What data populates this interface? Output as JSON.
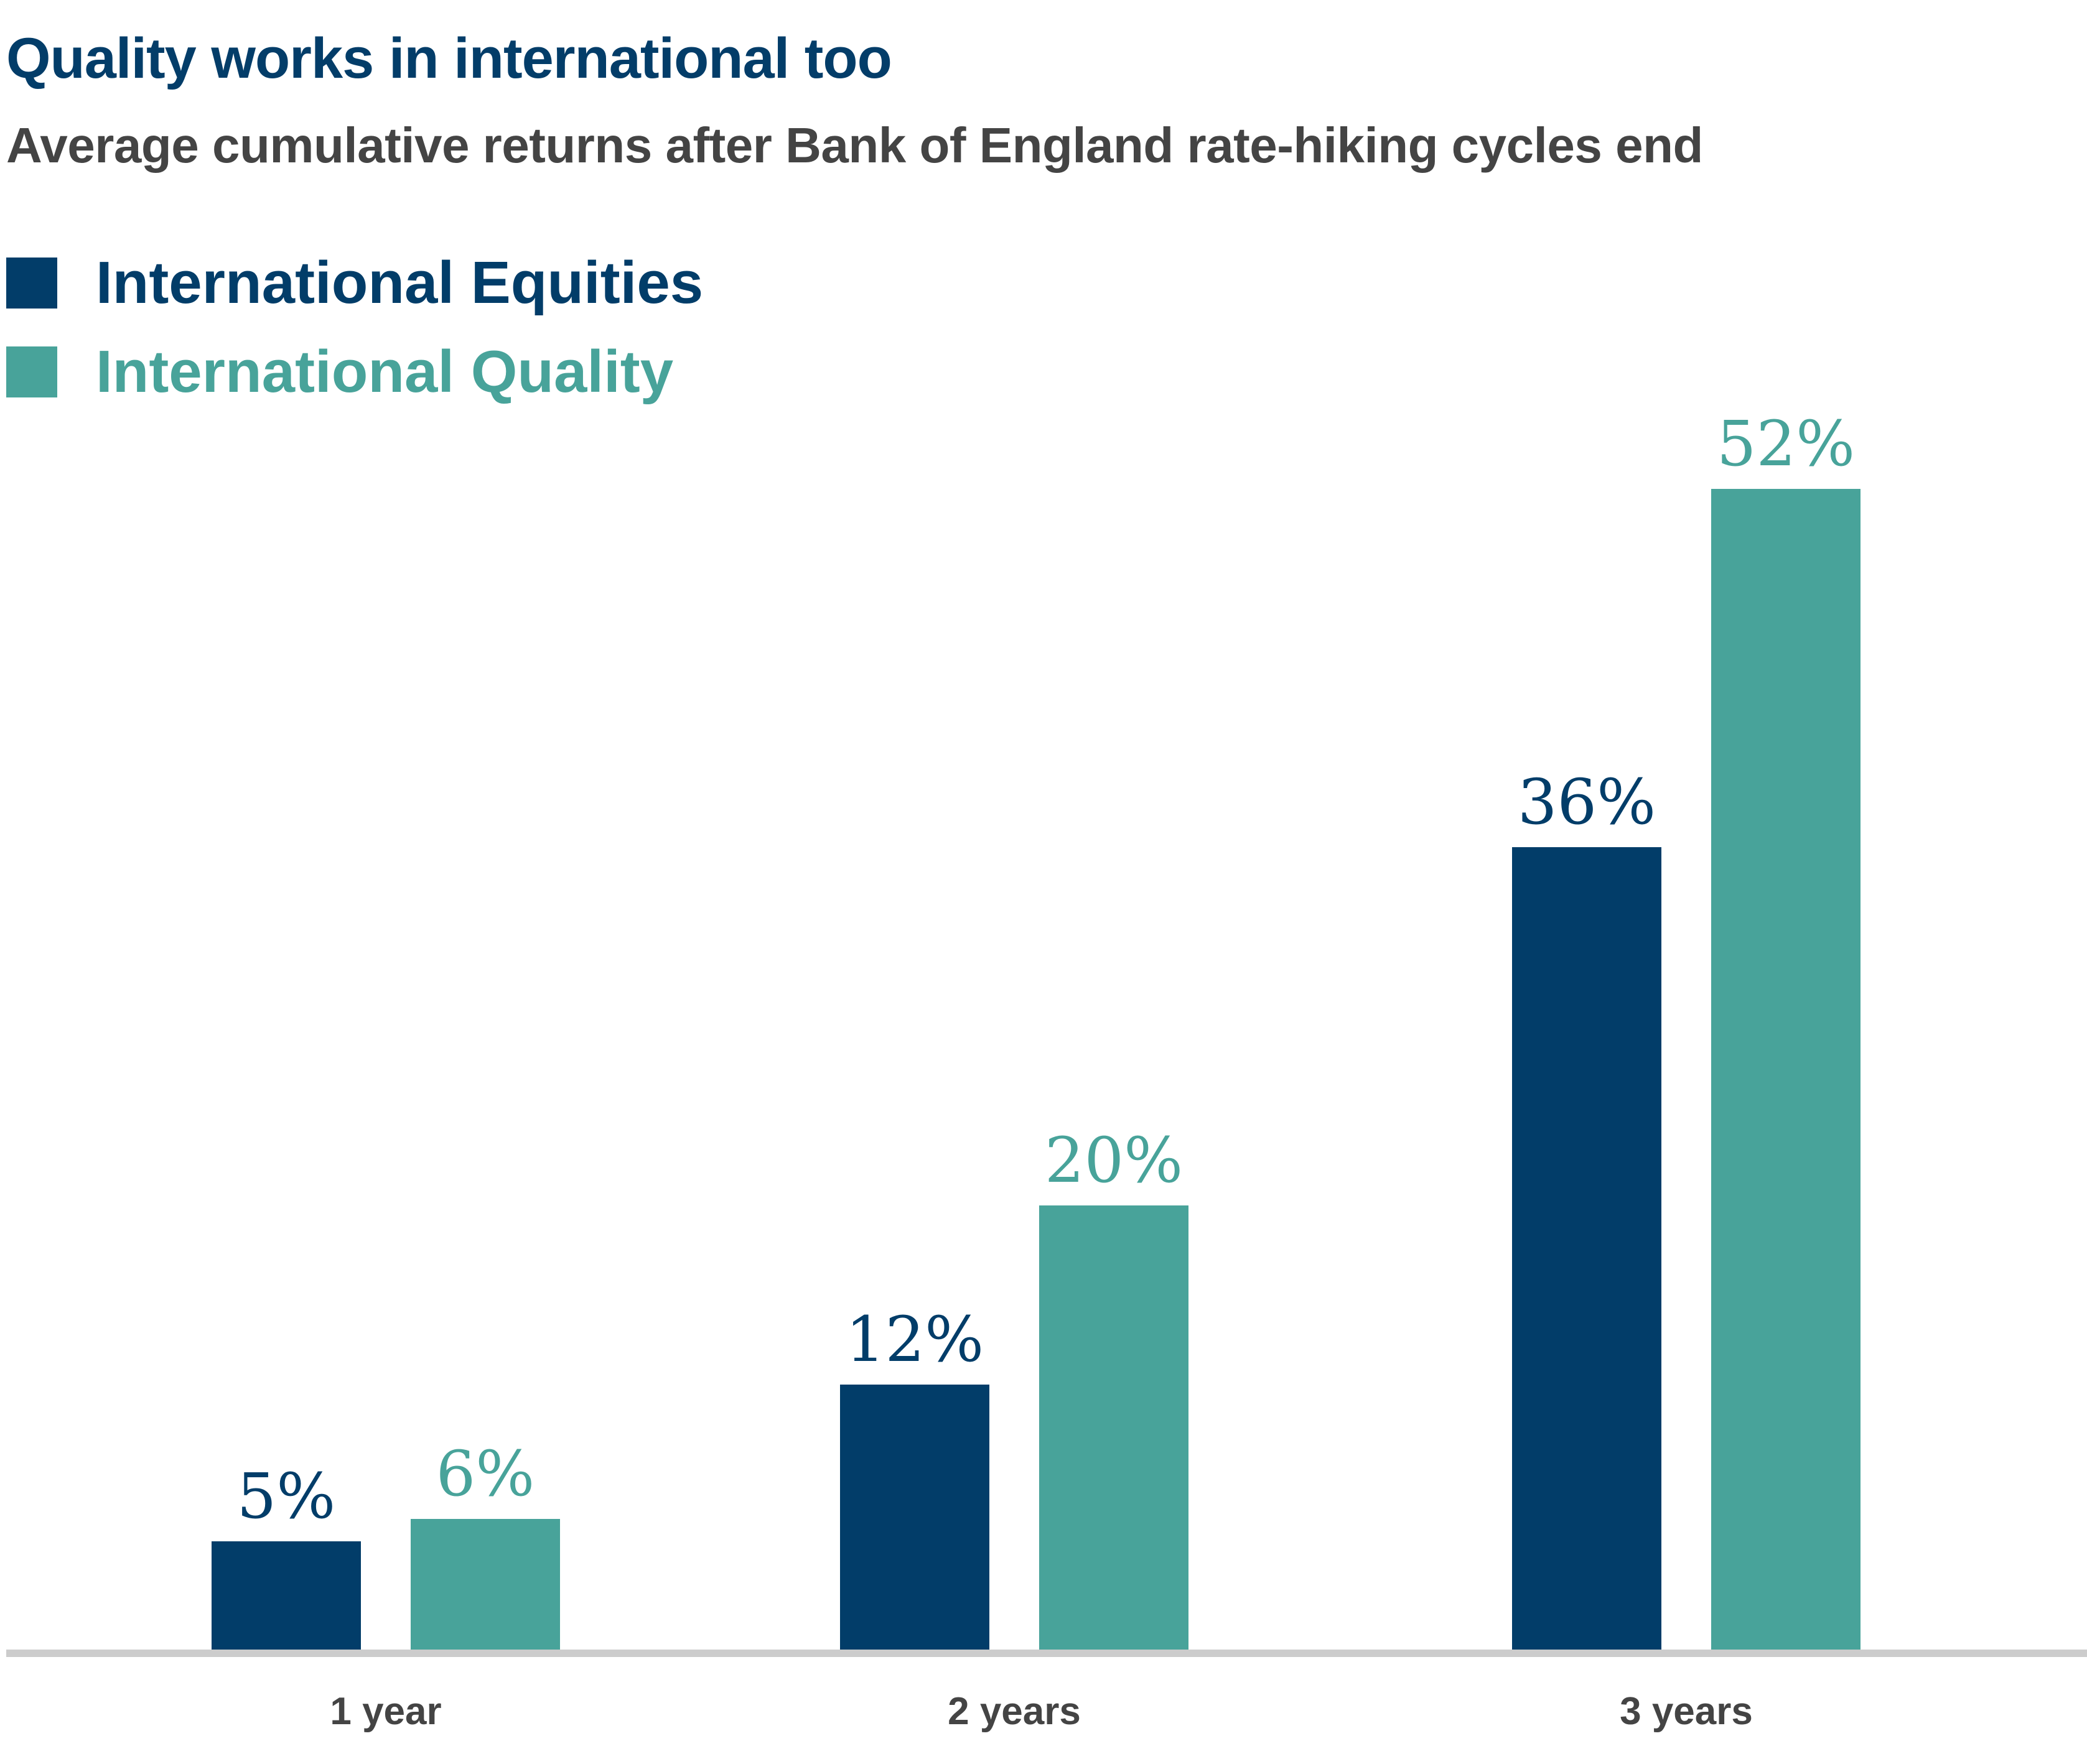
{
  "header": {
    "title": "Quality works in international too",
    "subtitle": "Average cumulative returns after Bank of England rate-hiking cycles end"
  },
  "colors": {
    "title": "#033d69",
    "subtitle": "#444444",
    "equities": "#023d69",
    "quality": "#48a39a",
    "axis": "#cccccc",
    "tick_label": "#444444"
  },
  "chart_data": {
    "type": "bar",
    "title": "Quality works in international too",
    "subtitle": "Average cumulative returns after Bank of England rate-hiking cycles end",
    "categories": [
      "1 year",
      "2 years",
      "3 years"
    ],
    "series": [
      {
        "name": "International Equities",
        "values": [
          5,
          12,
          36
        ],
        "labels": [
          "5%",
          "12%",
          "36%"
        ]
      },
      {
        "name": "International Quality",
        "values": [
          6,
          20,
          52
        ],
        "labels": [
          "6%",
          "20%",
          "52%"
        ]
      }
    ],
    "xlabel": "",
    "ylabel": "",
    "ylim": [
      0,
      52
    ],
    "grid": false,
    "legend": "top-left"
  }
}
